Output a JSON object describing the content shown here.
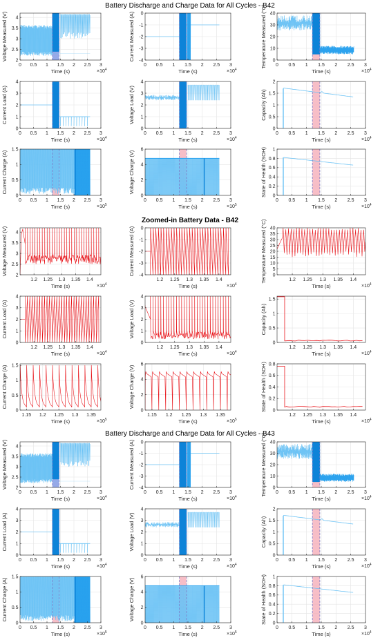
{
  "section_titles": [
    "Battery Discharge and Charge Data for All Cycles - B42",
    "Zoomed-in Battery Data - B42",
    "Battery Discharge and Charge Data for All Cycles - B43"
  ],
  "colors": {
    "overview": "#2aa2ee",
    "zoom": "#e8141a",
    "band_blue": "#3f63d6",
    "band_red": "#f4a8b4",
    "dash": "#7d7dc8"
  },
  "chart_data": [
    {
      "type": "line",
      "title": "",
      "section": 0,
      "xlabel": "Time (s)",
      "ylabel": "Voltage Measured (V)",
      "xlim": [
        0,
        3
      ],
      "ylim": [
        2,
        4.2
      ],
      "xticks": [
        "0",
        "0.5",
        "1",
        "1.5",
        "2",
        "2.5",
        "3"
      ],
      "yticks": [
        "2",
        "2.5",
        "3",
        "3.5",
        "4"
      ],
      "x_exponent": "4",
      "pattern": "volt",
      "highlight": "blue",
      "highlight_range": [
        1.2,
        1.45
      ]
    },
    {
      "type": "line",
      "title": "",
      "section": 0,
      "xlabel": "Time (s)",
      "ylabel": "Current Measured (A)",
      "xlim": [
        0,
        3
      ],
      "ylim": [
        -4,
        0
      ],
      "xticks": [
        "0",
        "0.5",
        "1",
        "1.5",
        "2",
        "2.5",
        "3"
      ],
      "yticks": [
        "-4",
        "-3",
        "-2",
        "-1",
        "0"
      ],
      "x_exponent": "4",
      "pattern": "curr",
      "highlight": "blue",
      "highlight_range": [
        1.2,
        1.45
      ]
    },
    {
      "type": "line",
      "title": "",
      "section": 0,
      "xlabel": "Time (s)",
      "ylabel": "Temperature Measured (°C)",
      "xlim": [
        0,
        3
      ],
      "ylim": [
        0,
        40
      ],
      "xticks": [
        "0",
        "0.5",
        "1",
        "1.5",
        "2",
        "2.5",
        "3"
      ],
      "yticks": [
        "0",
        "10",
        "20",
        "30",
        "40"
      ],
      "x_exponent": "4",
      "pattern": "temp",
      "highlight": "red",
      "highlight_range": [
        1.2,
        1.45
      ]
    },
    {
      "type": "line",
      "title": "",
      "section": 0,
      "xlabel": "Time (s)",
      "ylabel": "Current Load (A)",
      "xlim": [
        0,
        3
      ],
      "ylim": [
        0,
        4
      ],
      "xticks": [
        "0",
        "0.5",
        "1",
        "1.5",
        "2",
        "2.5",
        "3"
      ],
      "yticks": [
        "0",
        "1",
        "2",
        "3",
        "4"
      ],
      "x_exponent": "4",
      "pattern": "load",
      "highlight": "blue",
      "highlight_range": [
        1.2,
        1.45
      ]
    },
    {
      "type": "line",
      "title": "",
      "section": 0,
      "xlabel": "Time (s)",
      "ylabel": "Voltage Load (V)",
      "xlim": [
        0,
        3
      ],
      "ylim": [
        0,
        4
      ],
      "xticks": [
        "0",
        "0.5",
        "1",
        "1.5",
        "2",
        "2.5",
        "3"
      ],
      "yticks": [
        "0",
        "1",
        "2",
        "3",
        "4"
      ],
      "x_exponent": "4",
      "pattern": "vload",
      "highlight": "blue",
      "highlight_range": [
        1.2,
        1.45
      ]
    },
    {
      "type": "line",
      "title": "",
      "section": 0,
      "xlabel": "Time (s)",
      "ylabel": "Capacity (Ah)",
      "xlim": [
        0,
        3
      ],
      "ylim": [
        0,
        2
      ],
      "xticks": [
        "0",
        "0.5",
        "1",
        "1.5",
        "2",
        "2.5",
        "3"
      ],
      "yticks": [
        "0",
        "0.5",
        "1",
        "1.5",
        "2"
      ],
      "x_exponent": "4",
      "pattern": "cap",
      "highlight": "red",
      "highlight_range": [
        1.2,
        1.45
      ]
    },
    {
      "type": "line",
      "title": "",
      "section": 0,
      "xlabel": "Time (s)",
      "ylabel": "Current Charge (A)",
      "xlim": [
        0,
        3
      ],
      "ylim": [
        0,
        1.5
      ],
      "xticks": [
        "0",
        "0.5",
        "1",
        "1.5",
        "2",
        "2.5",
        "3"
      ],
      "yticks": [
        "0",
        "0.5",
        "1",
        "1.5"
      ],
      "x_exponent": "5",
      "pattern": "cch",
      "highlight": "red",
      "highlight_range": [
        1.2,
        1.45
      ]
    },
    {
      "type": "line",
      "title": "",
      "section": 0,
      "xlabel": "Time (s)",
      "ylabel": "Voltage Charge (V)",
      "xlim": [
        0,
        3
      ],
      "ylim": [
        0,
        6
      ],
      "xticks": [
        "0",
        "0.5",
        "1",
        "1.5",
        "2",
        "2.5",
        "3"
      ],
      "yticks": [
        "0",
        "2",
        "4",
        "6"
      ],
      "x_exponent": "5",
      "pattern": "vch",
      "highlight": "red",
      "highlight_range": [
        1.2,
        1.45
      ]
    },
    {
      "type": "line",
      "title": "",
      "section": 0,
      "xlabel": "Time (s)",
      "ylabel": "State of Health (SOH)",
      "xlim": [
        0,
        3
      ],
      "ylim": [
        0,
        1
      ],
      "xticks": [
        "0",
        "0.5",
        "1",
        "1.5",
        "2",
        "2.5",
        "3"
      ],
      "yticks": [
        "0",
        "0.2",
        "0.4",
        "0.6",
        "0.8",
        "1"
      ],
      "x_exponent": "4",
      "pattern": "soh",
      "highlight": "red",
      "highlight_range": [
        1.2,
        1.45
      ]
    },
    {
      "type": "line",
      "title": "",
      "section": 1,
      "xlabel": "Time (s)",
      "ylabel": "Voltage Measured (V)",
      "xlim": [
        1.15,
        1.44
      ],
      "ylim": [
        2,
        4.2
      ],
      "xticks": [
        "1.2",
        "1.25",
        "1.3",
        "1.35",
        "1.4"
      ],
      "xtick_values": [
        1.2,
        1.25,
        1.3,
        1.35,
        1.4
      ],
      "yticks": [
        "2",
        "2.5",
        "3",
        "3.5",
        "4"
      ],
      "x_exponent": "4",
      "pattern": "z_volt",
      "start": 1.168
    },
    {
      "type": "line",
      "title": "",
      "section": 1,
      "xlabel": "Time (s)",
      "ylabel": "Current Measured (A)",
      "xlim": [
        1.15,
        1.44
      ],
      "ylim": [
        -4,
        0
      ],
      "xticks": [
        "1.2",
        "1.25",
        "1.3",
        "1.35",
        "1.4"
      ],
      "xtick_values": [
        1.2,
        1.25,
        1.3,
        1.35,
        1.4
      ],
      "yticks": [
        "-4",
        "-3",
        "-2",
        "-1",
        "0"
      ],
      "x_exponent": "4",
      "pattern": "z_curr",
      "start": 1.168
    },
    {
      "type": "line",
      "title": "",
      "section": 1,
      "xlabel": "Time (s)",
      "ylabel": "Temperature Measured (°C)",
      "xlim": [
        1.15,
        1.44
      ],
      "ylim": [
        0,
        40
      ],
      "xticks": [
        "1.2",
        "1.25",
        "1.3",
        "1.35",
        "1.4"
      ],
      "xtick_values": [
        1.2,
        1.25,
        1.3,
        1.35,
        1.4
      ],
      "yticks": [
        "0",
        "5",
        "10",
        "15",
        "20",
        "25",
        "30",
        "35",
        "40"
      ],
      "x_exponent": "4",
      "pattern": "z_temp",
      "start": 1.155
    },
    {
      "type": "line",
      "title": "",
      "section": 1,
      "xlabel": "Time (s)",
      "ylabel": "Current Load (A)",
      "xlim": [
        1.15,
        1.44
      ],
      "ylim": [
        0,
        4
      ],
      "xticks": [
        "1.2",
        "1.25",
        "1.3",
        "1.35",
        "1.4"
      ],
      "xtick_values": [
        1.2,
        1.25,
        1.3,
        1.35,
        1.4
      ],
      "yticks": [
        "0",
        "1",
        "2",
        "3",
        "4"
      ],
      "x_exponent": "4",
      "pattern": "z_load",
      "start": 1.168
    },
    {
      "type": "line",
      "title": "",
      "section": 1,
      "xlabel": "Time (s)",
      "ylabel": "Voltage Load (V)",
      "xlim": [
        1.15,
        1.44
      ],
      "ylim": [
        0,
        4
      ],
      "xticks": [
        "1.2",
        "1.25",
        "1.3",
        "1.35",
        "1.4"
      ],
      "xtick_values": [
        1.2,
        1.25,
        1.3,
        1.35,
        1.4
      ],
      "yticks": [
        "0",
        "1",
        "2",
        "3",
        "4"
      ],
      "x_exponent": "4",
      "pattern": "z_vload",
      "start": 1.168
    },
    {
      "type": "line",
      "title": "",
      "section": 1,
      "xlabel": "Time (s)",
      "ylabel": "Capacity (Ah)",
      "xlim": [
        1.15,
        1.44
      ],
      "ylim": [
        0,
        1.6
      ],
      "xticks": [
        "1.2",
        "1.25",
        "1.3",
        "1.35",
        "1.4"
      ],
      "xtick_values": [
        1.2,
        1.25,
        1.3,
        1.35,
        1.4
      ],
      "yticks": [
        "0",
        "0.5",
        "1",
        "1.5"
      ],
      "x_exponent": "4",
      "pattern": "z_cap",
      "start": 1.175
    },
    {
      "type": "line",
      "title": "",
      "section": 1,
      "xlabel": "Time (s)",
      "ylabel": "Current Charge (A)",
      "xlim": [
        1.13,
        1.38
      ],
      "ylim": [
        0,
        1.55
      ],
      "xticks": [
        "1.15",
        "1.2",
        "1.25",
        "1.3",
        "1.35"
      ],
      "xtick_values": [
        1.15,
        1.2,
        1.25,
        1.3,
        1.35
      ],
      "yticks": [
        "0",
        "0.5",
        "1",
        "1.5"
      ],
      "x_exponent": "5",
      "pattern": "z_cch",
      "start": 1.13
    },
    {
      "type": "line",
      "title": "",
      "section": 1,
      "xlabel": "Time (s)",
      "ylabel": "Voltage Charge (V)",
      "xlim": [
        1.13,
        1.38
      ],
      "ylim": [
        0,
        6
      ],
      "xticks": [
        "1.15",
        "1.2",
        "1.25",
        "1.3",
        "1.35"
      ],
      "xtick_values": [
        1.15,
        1.2,
        1.25,
        1.3,
        1.35
      ],
      "yticks": [
        "0",
        "2",
        "4",
        "6"
      ],
      "x_exponent": "5",
      "pattern": "z_vch",
      "start": 1.13
    },
    {
      "type": "line",
      "title": "",
      "section": 1,
      "xlabel": "Time (s)",
      "ylabel": "State of Health (SOH)",
      "xlim": [
        1.15,
        1.44
      ],
      "ylim": [
        0,
        0.8
      ],
      "xticks": [
        "1.2",
        "1.25",
        "1.3",
        "1.35",
        "1.4"
      ],
      "xtick_values": [
        1.2,
        1.25,
        1.3,
        1.35,
        1.4
      ],
      "yticks": [
        "0",
        "0.2",
        "0.4",
        "0.6",
        "0.8"
      ],
      "x_exponent": "4",
      "pattern": "z_soh",
      "start": 1.175
    },
    {
      "type": "line",
      "title": "",
      "section": 2,
      "xlabel": "Time (s)",
      "ylabel": "Voltage Measured (V)",
      "xlim": [
        0,
        3
      ],
      "ylim": [
        2,
        4.2
      ],
      "xticks": [
        "0",
        "0.5",
        "1",
        "1.5",
        "2",
        "2.5",
        "3"
      ],
      "yticks": [
        "2",
        "2.5",
        "3",
        "3.5",
        "4"
      ],
      "x_exponent": "4",
      "pattern": "volt",
      "highlight": "blue",
      "highlight_range": [
        1.2,
        1.45
      ]
    },
    {
      "type": "line",
      "title": "",
      "section": 2,
      "xlabel": "Time (s)",
      "ylabel": "Current Measured (A)",
      "xlim": [
        0,
        3
      ],
      "ylim": [
        -4,
        0
      ],
      "xticks": [
        "0",
        "0.5",
        "1",
        "1.5",
        "2",
        "2.5",
        "3"
      ],
      "yticks": [
        "-4",
        "-3",
        "-2",
        "-1",
        "0"
      ],
      "x_exponent": "4",
      "pattern": "curr",
      "highlight": "blue",
      "highlight_range": [
        1.2,
        1.45
      ]
    },
    {
      "type": "line",
      "title": "",
      "section": 2,
      "xlabel": "Time (s)",
      "ylabel": "Temperature Measured (°C)",
      "xlim": [
        0,
        3
      ],
      "ylim": [
        0,
        40
      ],
      "xticks": [
        "0",
        "0.5",
        "1",
        "1.5",
        "2",
        "2.5",
        "3"
      ],
      "yticks": [
        "0",
        "10",
        "20",
        "30",
        "40"
      ],
      "x_exponent": "4",
      "pattern": "temp",
      "highlight": "red",
      "highlight_range": [
        1.2,
        1.45
      ]
    },
    {
      "type": "line",
      "title": "",
      "section": 2,
      "xlabel": "Time (s)",
      "ylabel": "Current Load (A)",
      "xlim": [
        0,
        3
      ],
      "ylim": [
        0,
        4
      ],
      "xticks": [
        "0",
        "0.5",
        "1",
        "1.5",
        "2",
        "2.5",
        "3"
      ],
      "yticks": [
        "0",
        "1",
        "2",
        "3",
        "4"
      ],
      "x_exponent": "4",
      "pattern": "load",
      "highlight": "blue",
      "highlight_range": [
        1.2,
        1.45
      ]
    },
    {
      "type": "line",
      "title": "",
      "section": 2,
      "xlabel": "Time (s)",
      "ylabel": "Voltage Load (V)",
      "xlim": [
        0,
        3
      ],
      "ylim": [
        0,
        4
      ],
      "xticks": [
        "0",
        "0.5",
        "1",
        "1.5",
        "2",
        "2.5",
        "3"
      ],
      "yticks": [
        "0",
        "1",
        "2",
        "3",
        "4"
      ],
      "x_exponent": "4",
      "pattern": "vload",
      "highlight": "blue",
      "highlight_range": [
        1.2,
        1.45
      ]
    },
    {
      "type": "line",
      "title": "",
      "section": 2,
      "xlabel": "Time (s)",
      "ylabel": "Capacity (Ah)",
      "xlim": [
        0,
        3
      ],
      "ylim": [
        0,
        2
      ],
      "xticks": [
        "0",
        "0.5",
        "1",
        "1.5",
        "2",
        "2.5",
        "3"
      ],
      "yticks": [
        "0",
        "0.5",
        "1",
        "1.5",
        "2"
      ],
      "x_exponent": "4",
      "pattern": "cap",
      "highlight": "red",
      "highlight_range": [
        1.2,
        1.45
      ]
    },
    {
      "type": "line",
      "title": "",
      "section": 2,
      "xlabel": "Time (s)",
      "ylabel": "Current Charge (A)",
      "xlim": [
        0,
        3
      ],
      "ylim": [
        0,
        1.5
      ],
      "xticks": [
        "0",
        "0.5",
        "1",
        "1.5",
        "2",
        "2.5",
        "3"
      ],
      "yticks": [
        "0",
        "0.5",
        "1",
        "1.5"
      ],
      "x_exponent": "5",
      "pattern": "cch",
      "highlight": "red",
      "highlight_range": [
        1.2,
        1.45
      ]
    },
    {
      "type": "line",
      "title": "",
      "section": 2,
      "xlabel": "Time (s)",
      "ylabel": "Voltage Charge (V)",
      "xlim": [
        0,
        3
      ],
      "ylim": [
        0,
        6
      ],
      "xticks": [
        "0",
        "0.5",
        "1",
        "1.5",
        "2",
        "2.5",
        "3"
      ],
      "yticks": [
        "0",
        "2",
        "4",
        "6"
      ],
      "x_exponent": "5",
      "pattern": "vch",
      "highlight": "red",
      "highlight_range": [
        1.2,
        1.45
      ]
    },
    {
      "type": "line",
      "title": "",
      "section": 2,
      "xlabel": "Time (s)",
      "ylabel": "State of Health (SOH)",
      "xlim": [
        0,
        3
      ],
      "ylim": [
        0,
        1
      ],
      "xticks": [
        "0",
        "0.5",
        "1",
        "1.5",
        "2",
        "2.5",
        "3"
      ],
      "yticks": [
        "0",
        "0.2",
        "0.4",
        "0.6",
        "0.8",
        "1"
      ],
      "x_exponent": "4",
      "pattern": "soh",
      "highlight": "red",
      "highlight_range": [
        1.2,
        1.45
      ]
    }
  ]
}
